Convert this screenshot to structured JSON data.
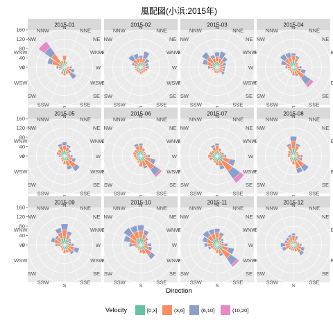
{
  "chart_data": {
    "type": "wind-rose",
    "title": "風配図(小浜:2015年)",
    "xlabel": "Direction",
    "ylim": [
      0,
      160
    ],
    "yticks": [
      0,
      40,
      80,
      120,
      160
    ],
    "ytick_labels": [
      "0",
      "40",
      "80",
      "120",
      "160"
    ],
    "directions": [
      "N",
      "NNE",
      "NE",
      "ENE",
      "E",
      "ESE",
      "SE",
      "SSE",
      "S",
      "SSW",
      "SW",
      "WSW",
      "W",
      "WNW",
      "NW",
      "NNW"
    ],
    "legend": {
      "title": "Velocity",
      "placement": "bottom",
      "entries": [
        {
          "label": "[0,3]",
          "color": "#66C2A5"
        },
        {
          "label": "(3,6]",
          "color": "#FC8D62"
        },
        {
          "label": "(6,10]",
          "color": "#8DA0CB"
        },
        {
          "label": "(10,20]",
          "color": "#E78AC3"
        }
      ]
    },
    "panels": [
      {
        "name": "2015-01",
        "values": [
          [
            30,
            20,
            0,
            0
          ],
          [
            15,
            10,
            0,
            0
          ],
          [
            8,
            5,
            0,
            0
          ],
          [
            5,
            5,
            0,
            0
          ],
          [
            10,
            12,
            10,
            0
          ],
          [
            10,
            20,
            15,
            0
          ],
          [
            12,
            25,
            25,
            0
          ],
          [
            15,
            15,
            0,
            0
          ],
          [
            25,
            10,
            0,
            0
          ],
          [
            20,
            10,
            0,
            0
          ],
          [
            10,
            5,
            0,
            0
          ],
          [
            10,
            10,
            5,
            0
          ],
          [
            10,
            15,
            10,
            0
          ],
          [
            20,
            35,
            20,
            0
          ],
          [
            25,
            45,
            35,
            30
          ],
          [
            15,
            15,
            0,
            0
          ]
        ]
      },
      {
        "name": "2015-02",
        "values": [
          [
            20,
            20,
            10,
            0
          ],
          [
            20,
            20,
            30,
            0
          ],
          [
            10,
            15,
            20,
            0
          ],
          [
            10,
            10,
            15,
            0
          ],
          [
            10,
            10,
            15,
            0
          ],
          [
            15,
            15,
            0,
            0
          ],
          [
            15,
            10,
            0,
            0
          ],
          [
            15,
            10,
            0,
            0
          ],
          [
            20,
            10,
            0,
            0
          ],
          [
            15,
            10,
            0,
            0
          ],
          [
            15,
            10,
            0,
            0
          ],
          [
            10,
            10,
            5,
            0
          ],
          [
            10,
            10,
            5,
            0
          ],
          [
            15,
            15,
            10,
            0
          ],
          [
            20,
            20,
            25,
            0
          ],
          [
            20,
            20,
            20,
            0
          ]
        ]
      },
      {
        "name": "2015-03",
        "values": [
          [
            25,
            20,
            20,
            0
          ],
          [
            20,
            20,
            30,
            0
          ],
          [
            15,
            20,
            20,
            0
          ],
          [
            10,
            15,
            15,
            0
          ],
          [
            10,
            15,
            10,
            0
          ],
          [
            10,
            15,
            10,
            0
          ],
          [
            15,
            15,
            10,
            0
          ],
          [
            15,
            10,
            0,
            0
          ],
          [
            15,
            10,
            0,
            0
          ],
          [
            15,
            10,
            0,
            0
          ],
          [
            10,
            10,
            0,
            0
          ],
          [
            10,
            10,
            5,
            0
          ],
          [
            15,
            15,
            10,
            0
          ],
          [
            20,
            25,
            20,
            0
          ],
          [
            25,
            30,
            25,
            0
          ],
          [
            20,
            20,
            15,
            0
          ]
        ]
      },
      {
        "name": "2015-04",
        "values": [
          [
            30,
            20,
            10,
            0
          ],
          [
            25,
            15,
            10,
            0
          ],
          [
            15,
            10,
            0,
            0
          ],
          [
            10,
            10,
            0,
            0
          ],
          [
            10,
            15,
            10,
            0
          ],
          [
            15,
            20,
            20,
            0
          ],
          [
            20,
            35,
            35,
            15
          ],
          [
            15,
            15,
            10,
            0
          ],
          [
            20,
            15,
            0,
            0
          ],
          [
            15,
            10,
            0,
            0
          ],
          [
            10,
            10,
            0,
            0
          ],
          [
            10,
            10,
            5,
            0
          ],
          [
            10,
            15,
            10,
            0
          ],
          [
            15,
            20,
            20,
            0
          ],
          [
            20,
            25,
            25,
            0
          ],
          [
            25,
            20,
            20,
            0
          ]
        ]
      },
      {
        "name": "2015-05",
        "values": [
          [
            25,
            20,
            15,
            0
          ],
          [
            20,
            20,
            10,
            0
          ],
          [
            15,
            10,
            10,
            0
          ],
          [
            10,
            10,
            5,
            0
          ],
          [
            10,
            15,
            10,
            0
          ],
          [
            15,
            20,
            15,
            0
          ],
          [
            25,
            35,
            20,
            0
          ],
          [
            20,
            25,
            15,
            0
          ],
          [
            20,
            15,
            0,
            0
          ],
          [
            15,
            10,
            0,
            0
          ],
          [
            10,
            10,
            0,
            0
          ],
          [
            10,
            5,
            0,
            0
          ],
          [
            15,
            10,
            0,
            0
          ],
          [
            20,
            15,
            0,
            0
          ],
          [
            20,
            15,
            0,
            0
          ],
          [
            25,
            20,
            10,
            0
          ]
        ]
      },
      {
        "name": "2015-06",
        "values": [
          [
            25,
            20,
            10,
            0
          ],
          [
            20,
            15,
            0,
            0
          ],
          [
            15,
            10,
            0,
            0
          ],
          [
            10,
            10,
            5,
            0
          ],
          [
            15,
            15,
            10,
            0
          ],
          [
            20,
            25,
            20,
            0
          ],
          [
            25,
            45,
            30,
            10
          ],
          [
            20,
            25,
            10,
            0
          ],
          [
            25,
            20,
            0,
            0
          ],
          [
            20,
            10,
            0,
            0
          ],
          [
            15,
            10,
            0,
            0
          ],
          [
            15,
            10,
            0,
            0
          ],
          [
            20,
            10,
            0,
            0
          ],
          [
            20,
            15,
            0,
            0
          ],
          [
            20,
            15,
            0,
            0
          ],
          [
            25,
            20,
            10,
            0
          ]
        ]
      },
      {
        "name": "2015-07",
        "values": [
          [
            25,
            20,
            10,
            0
          ],
          [
            20,
            15,
            0,
            0
          ],
          [
            15,
            10,
            0,
            0
          ],
          [
            10,
            10,
            10,
            0
          ],
          [
            15,
            15,
            10,
            0
          ],
          [
            25,
            30,
            25,
            0
          ],
          [
            30,
            50,
            40,
            20
          ],
          [
            20,
            25,
            15,
            0
          ],
          [
            25,
            15,
            0,
            0
          ],
          [
            20,
            10,
            0,
            0
          ],
          [
            15,
            10,
            0,
            0
          ],
          [
            20,
            15,
            0,
            0
          ],
          [
            25,
            15,
            0,
            0
          ],
          [
            20,
            15,
            0,
            0
          ],
          [
            15,
            15,
            0,
            0
          ],
          [
            20,
            20,
            10,
            0
          ]
        ]
      },
      {
        "name": "2015-08",
        "values": [
          [
            35,
            30,
            20,
            0
          ],
          [
            25,
            20,
            10,
            0
          ],
          [
            15,
            10,
            0,
            0
          ],
          [
            15,
            10,
            0,
            0
          ],
          [
            15,
            15,
            10,
            0
          ],
          [
            15,
            15,
            10,
            0
          ],
          [
            25,
            30,
            25,
            0
          ],
          [
            25,
            30,
            20,
            0
          ],
          [
            20,
            15,
            0,
            0
          ],
          [
            15,
            10,
            0,
            0
          ],
          [
            10,
            10,
            0,
            0
          ],
          [
            10,
            5,
            0,
            0
          ],
          [
            15,
            10,
            0,
            0
          ],
          [
            15,
            10,
            0,
            0
          ],
          [
            15,
            15,
            0,
            0
          ],
          [
            25,
            20,
            10,
            0
          ]
        ]
      },
      {
        "name": "2015-09",
        "values": [
          [
            35,
            30,
            25,
            0
          ],
          [
            25,
            20,
            15,
            0
          ],
          [
            15,
            10,
            10,
            0
          ],
          [
            10,
            10,
            10,
            0
          ],
          [
            15,
            15,
            10,
            0
          ],
          [
            20,
            25,
            20,
            0
          ],
          [
            20,
            20,
            10,
            0
          ],
          [
            20,
            15,
            0,
            0
          ],
          [
            20,
            15,
            0,
            0
          ],
          [
            15,
            10,
            0,
            0
          ],
          [
            10,
            10,
            0,
            0
          ],
          [
            10,
            10,
            0,
            0
          ],
          [
            15,
            15,
            10,
            0
          ],
          [
            20,
            25,
            15,
            0
          ],
          [
            20,
            20,
            10,
            0
          ],
          [
            30,
            25,
            20,
            0
          ]
        ]
      },
      {
        "name": "2015-10",
        "values": [
          [
            30,
            30,
            25,
            0
          ],
          [
            25,
            20,
            20,
            0
          ],
          [
            15,
            15,
            10,
            0
          ],
          [
            10,
            10,
            10,
            0
          ],
          [
            15,
            15,
            15,
            0
          ],
          [
            15,
            20,
            15,
            0
          ],
          [
            25,
            30,
            20,
            0
          ],
          [
            20,
            20,
            0,
            0
          ],
          [
            20,
            15,
            0,
            0
          ],
          [
            15,
            10,
            0,
            0
          ],
          [
            10,
            10,
            0,
            0
          ],
          [
            10,
            10,
            5,
            0
          ],
          [
            15,
            20,
            15,
            0
          ],
          [
            20,
            30,
            25,
            0
          ],
          [
            25,
            35,
            30,
            0
          ],
          [
            30,
            30,
            25,
            0
          ]
        ]
      },
      {
        "name": "2015-11",
        "values": [
          [
            30,
            25,
            15,
            0
          ],
          [
            20,
            20,
            15,
            0
          ],
          [
            15,
            10,
            10,
            0
          ],
          [
            10,
            10,
            10,
            0
          ],
          [
            15,
            15,
            15,
            0
          ],
          [
            20,
            30,
            25,
            0
          ],
          [
            30,
            40,
            35,
            10
          ],
          [
            20,
            20,
            10,
            0
          ],
          [
            20,
            15,
            0,
            0
          ],
          [
            15,
            10,
            0,
            0
          ],
          [
            15,
            10,
            0,
            0
          ],
          [
            15,
            15,
            10,
            0
          ],
          [
            20,
            20,
            15,
            0
          ],
          [
            20,
            25,
            20,
            0
          ],
          [
            25,
            25,
            25,
            0
          ],
          [
            25,
            25,
            20,
            0
          ]
        ]
      },
      {
        "name": "2015-12",
        "values": [
          [
            20,
            20,
            10,
            0
          ],
          [
            15,
            15,
            10,
            0
          ],
          [
            10,
            10,
            0,
            0
          ],
          [
            10,
            10,
            5,
            0
          ],
          [
            10,
            15,
            10,
            0
          ],
          [
            15,
            20,
            15,
            0
          ],
          [
            20,
            20,
            15,
            0
          ],
          [
            15,
            15,
            0,
            0
          ],
          [
            15,
            10,
            0,
            0
          ],
          [
            15,
            10,
            0,
            0
          ],
          [
            10,
            10,
            5,
            0
          ],
          [
            15,
            20,
            15,
            0
          ],
          [
            15,
            20,
            20,
            0
          ],
          [
            15,
            15,
            10,
            0
          ],
          [
            15,
            15,
            10,
            0
          ],
          [
            15,
            20,
            10,
            0
          ]
        ]
      }
    ]
  }
}
